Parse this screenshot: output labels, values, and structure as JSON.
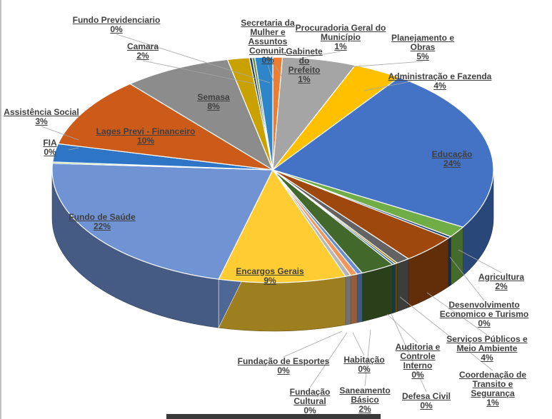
{
  "chart_data": {
    "type": "pie",
    "style": "3d",
    "title": "",
    "slices": [
      {
        "name": "Procuradoria Geral do Município",
        "percent_label": "1%",
        "value": 0.7,
        "color": "#ED7D31"
      },
      {
        "name": "Planejamento e Obras",
        "percent_label": "5%",
        "value": 5.4,
        "color": "#A5A5A5"
      },
      {
        "name": "Administração e Fazenda",
        "percent_label": "4%",
        "value": 3.6,
        "color": "#FFC000"
      },
      {
        "name": "Educação",
        "percent_label": "24%",
        "value": 23.8,
        "color": "#4472C4"
      },
      {
        "name": "Agricultura",
        "percent_label": "2%",
        "value": 1.6,
        "color": "#70AD47"
      },
      {
        "name": "Desenvolvimento Economico e Turismo",
        "percent_label": "0%",
        "value": 0.3,
        "color": "#264478"
      },
      {
        "name": "Serviços Públicos e Meio Ambiente",
        "percent_label": "4%",
        "value": 4.1,
        "color": "#9E480E"
      },
      {
        "name": "Coordenação de Transito e Segurança",
        "percent_label": "1%",
        "value": 1.0,
        "color": "#636363"
      },
      {
        "name": "Defesa Civil",
        "percent_label": "0%",
        "value": 0.2,
        "color": "#997300"
      },
      {
        "name": "Auditoria e Controle Interno",
        "percent_label": "0%",
        "value": 0.2,
        "color": "#255E91"
      },
      {
        "name": "Saneamento Básico",
        "percent_label": "2%",
        "value": 2.5,
        "color": "#43682B"
      },
      {
        "name": "Habitação",
        "percent_label": "0%",
        "value": 0.4,
        "color": "#698ED0"
      },
      {
        "name": "Fundação Cultural",
        "percent_label": "0%",
        "value": 0.5,
        "color": "#F1975A"
      },
      {
        "name": "Fundação de Esportes",
        "percent_label": "0%",
        "value": 0.4,
        "color": "#B7B7B7"
      },
      {
        "name": "Encargos Gerais",
        "percent_label": "9%",
        "value": 9.3,
        "color": "#FFCD33"
      },
      {
        "name": "Fundo de Saúde",
        "percent_label": "22%",
        "value": 22.0,
        "color": "#6F93D3"
      },
      {
        "name": "FIA",
        "percent_label": "0%",
        "value": 0.2,
        "color": "#8CC168"
      },
      {
        "name": "Assistência Social",
        "percent_label": "3%",
        "value": 2.6,
        "color": "#2E75C6"
      },
      {
        "name": "Lages Previ - Financeiro",
        "percent_label": "10%",
        "value": 10.1,
        "color": "#CC5B1A"
      },
      {
        "name": "Semasa",
        "percent_label": "8%",
        "value": 7.9,
        "color": "#8C8C8C"
      },
      {
        "name": "Camara",
        "percent_label": "2%",
        "value": 1.6,
        "color": "#C9A200"
      },
      {
        "name": "Fundo Previdenciario",
        "percent_label": "0%",
        "value": 0.2,
        "color": "#203864"
      },
      {
        "name": "Secretaria da Mulher e Assuntos Comunit.",
        "percent_label": "0%",
        "value": 0.2,
        "color": "#6A8F3B"
      },
      {
        "name": "Gabinete do Prefeito",
        "percent_label": "1%",
        "value": 1.3,
        "color": "#2E86C8"
      }
    ]
  }
}
